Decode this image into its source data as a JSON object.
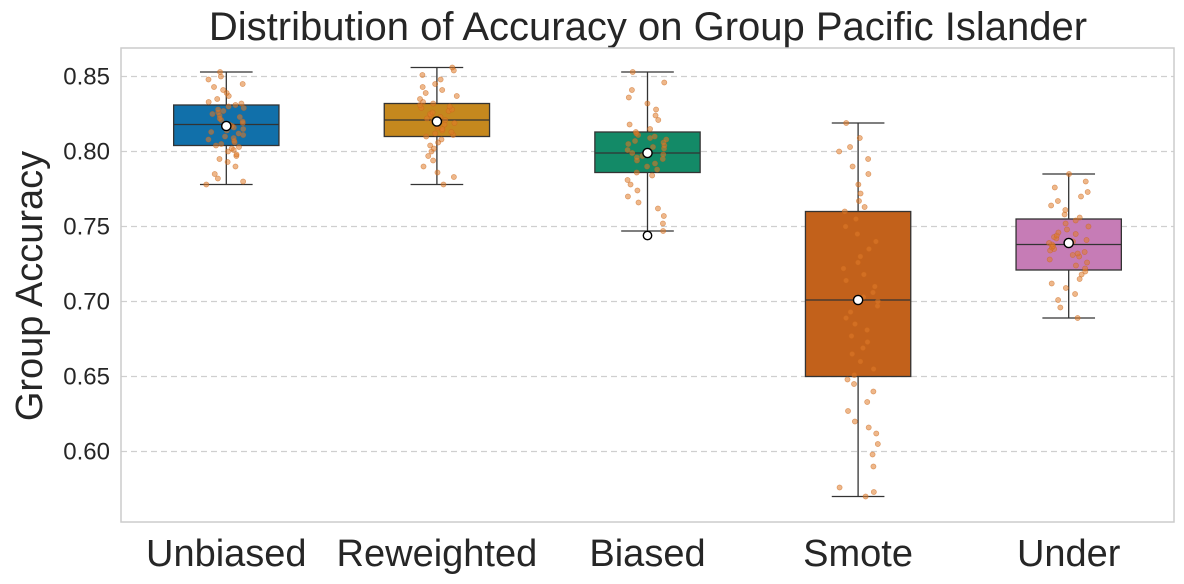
{
  "chart_data": {
    "type": "box",
    "title": "Distribution of Accuracy on Group Pacific Islander",
    "xlabel": "",
    "ylabel": "Group Accuracy",
    "ylim": [
      0.553,
      0.869
    ],
    "yticks": [
      0.6,
      0.65,
      0.7,
      0.75,
      0.8,
      0.85
    ],
    "ytick_labels": [
      "0.60",
      "0.65",
      "0.70",
      "0.75",
      "0.80",
      "0.85"
    ],
    "grid": true,
    "categories": [
      "Unbiased",
      "Reweighted",
      "Biased",
      "Smote",
      "Under"
    ],
    "colors": [
      "#1170aa",
      "#c5881e",
      "#138a67",
      "#c2611b",
      "#c67cb6"
    ],
    "series": [
      {
        "name": "Unbiased",
        "whisker_low": 0.778,
        "q1": 0.804,
        "median": 0.818,
        "q3": 0.831,
        "whisker_high": 0.853,
        "mean": 0.817,
        "outliers": [],
        "points": [
          0.778,
          0.78,
          0.782,
          0.785,
          0.79,
          0.793,
          0.795,
          0.797,
          0.798,
          0.8,
          0.801,
          0.802,
          0.803,
          0.804,
          0.805,
          0.806,
          0.807,
          0.808,
          0.809,
          0.81,
          0.811,
          0.812,
          0.813,
          0.814,
          0.815,
          0.816,
          0.817,
          0.818,
          0.819,
          0.82,
          0.821,
          0.822,
          0.823,
          0.824,
          0.825,
          0.826,
          0.827,
          0.828,
          0.829,
          0.83,
          0.831,
          0.832,
          0.833,
          0.835,
          0.837,
          0.839,
          0.841,
          0.843,
          0.845,
          0.848,
          0.85,
          0.853
        ]
      },
      {
        "name": "Reweighted",
        "whisker_low": 0.778,
        "q1": 0.81,
        "median": 0.821,
        "q3": 0.832,
        "whisker_high": 0.856,
        "mean": 0.82,
        "outliers": [],
        "points": [
          0.778,
          0.783,
          0.786,
          0.79,
          0.794,
          0.797,
          0.8,
          0.802,
          0.804,
          0.806,
          0.808,
          0.81,
          0.811,
          0.812,
          0.813,
          0.814,
          0.815,
          0.816,
          0.817,
          0.818,
          0.819,
          0.82,
          0.821,
          0.822,
          0.823,
          0.824,
          0.825,
          0.826,
          0.827,
          0.828,
          0.829,
          0.83,
          0.831,
          0.832,
          0.833,
          0.835,
          0.837,
          0.839,
          0.841,
          0.843,
          0.845,
          0.848,
          0.851,
          0.854,
          0.856
        ]
      },
      {
        "name": "Biased",
        "whisker_low": 0.747,
        "q1": 0.786,
        "median": 0.799,
        "q3": 0.813,
        "whisker_high": 0.853,
        "mean": 0.799,
        "outliers": [
          0.744
        ],
        "points": [
          0.747,
          0.752,
          0.757,
          0.762,
          0.766,
          0.77,
          0.774,
          0.778,
          0.781,
          0.784,
          0.786,
          0.788,
          0.79,
          0.792,
          0.794,
          0.795,
          0.796,
          0.797,
          0.798,
          0.799,
          0.8,
          0.801,
          0.802,
          0.803,
          0.804,
          0.805,
          0.806,
          0.807,
          0.808,
          0.809,
          0.81,
          0.811,
          0.812,
          0.813,
          0.815,
          0.818,
          0.821,
          0.824,
          0.828,
          0.832,
          0.836,
          0.841,
          0.846,
          0.853
        ]
      },
      {
        "name": "Smote",
        "whisker_low": 0.57,
        "q1": 0.65,
        "median": 0.701,
        "q3": 0.76,
        "whisker_high": 0.819,
        "mean": 0.701,
        "outliers": [],
        "points": [
          0.57,
          0.573,
          0.576,
          0.59,
          0.598,
          0.605,
          0.612,
          0.616,
          0.62,
          0.627,
          0.633,
          0.64,
          0.645,
          0.648,
          0.651,
          0.655,
          0.66,
          0.665,
          0.669,
          0.673,
          0.677,
          0.681,
          0.685,
          0.689,
          0.693,
          0.697,
          0.7,
          0.703,
          0.706,
          0.71,
          0.714,
          0.718,
          0.722,
          0.726,
          0.73,
          0.735,
          0.74,
          0.745,
          0.75,
          0.755,
          0.76,
          0.763,
          0.767,
          0.772,
          0.778,
          0.785,
          0.79,
          0.795,
          0.8,
          0.803,
          0.809,
          0.819
        ]
      },
      {
        "name": "Under",
        "whisker_low": 0.689,
        "q1": 0.721,
        "median": 0.738,
        "q3": 0.755,
        "whisker_high": 0.785,
        "mean": 0.739,
        "outliers": [],
        "points": [
          0.689,
          0.696,
          0.701,
          0.705,
          0.709,
          0.712,
          0.715,
          0.718,
          0.72,
          0.722,
          0.724,
          0.726,
          0.728,
          0.73,
          0.731,
          0.732,
          0.733,
          0.734,
          0.735,
          0.736,
          0.737,
          0.738,
          0.739,
          0.74,
          0.741,
          0.742,
          0.743,
          0.744,
          0.745,
          0.746,
          0.748,
          0.75,
          0.752,
          0.754,
          0.756,
          0.758,
          0.761,
          0.764,
          0.767,
          0.77,
          0.773,
          0.776,
          0.78,
          0.785
        ]
      }
    ]
  }
}
